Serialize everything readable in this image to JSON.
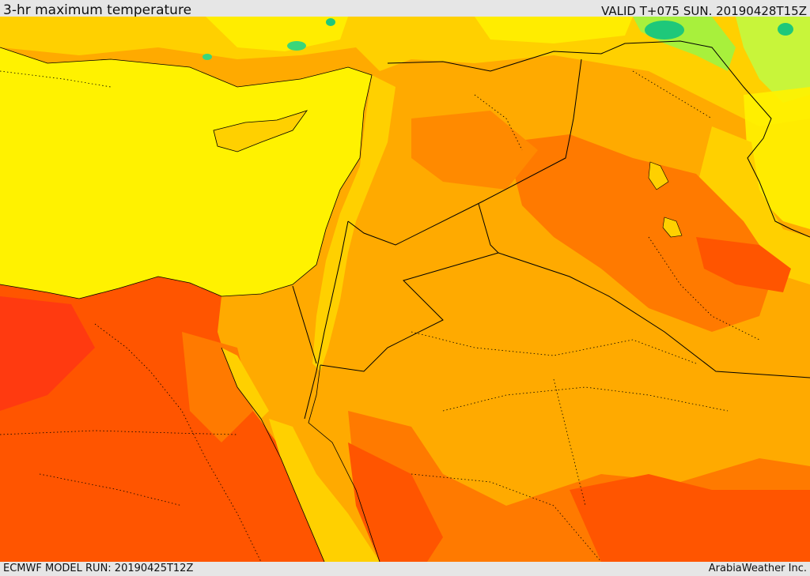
{
  "header": {
    "title": "3-hr maximum temperature",
    "valid": "VALID T+075 SUN. 20190428T15Z"
  },
  "footer": {
    "model_run": "ECMWF MODEL RUN: 20190425T12Z",
    "provider": "ArabiaWeather Inc."
  },
  "map": {
    "variable": "3-hr maximum temperature",
    "colors": {
      "cool_green": "#1ec87a",
      "light_green": "#a8f03c",
      "yellow": "#fff200",
      "yellow_orange": "#ffd000",
      "orange": "#ffaa00",
      "dark_orange": "#ff7a00",
      "red_orange": "#ff5500",
      "red": "#ff3a10",
      "border": "#000000"
    }
  }
}
